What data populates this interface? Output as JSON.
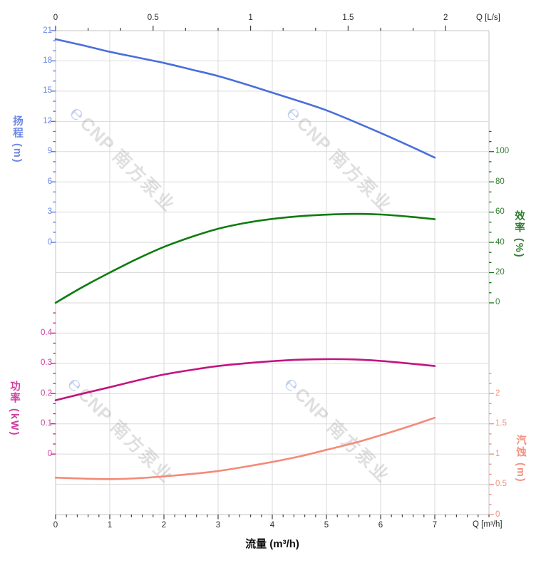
{
  "watermark": {
    "logo_icon": "℮",
    "brand": "CNP",
    "brand_cn": "南方泵业"
  },
  "top_axis": {
    "label": "Q [L/s]",
    "ticks": [
      {
        "v": 0,
        "t": "0"
      },
      {
        "v": 0.5,
        "t": "0.5"
      },
      {
        "v": 1,
        "t": "1"
      },
      {
        "v": 1.5,
        "t": "1.5"
      },
      {
        "v": 2,
        "t": "2"
      }
    ]
  },
  "bottom_axis": {
    "label": "Q [m³/h]",
    "title": "流量 (m³/h)",
    "ticks": [
      {
        "v": 0,
        "t": "0"
      },
      {
        "v": 1,
        "t": "1"
      },
      {
        "v": 2,
        "t": "2"
      },
      {
        "v": 3,
        "t": "3"
      },
      {
        "v": 4,
        "t": "4"
      },
      {
        "v": 5,
        "t": "5"
      },
      {
        "v": 6,
        "t": "6"
      },
      {
        "v": 7,
        "t": "7"
      }
    ]
  },
  "axes": {
    "head": {
      "title": "扬程 (m)",
      "unit": "m",
      "color": "#4a6edc",
      "label_color": "#6c86e6",
      "ticks": [
        {
          "v": 21,
          "t": "21"
        },
        {
          "v": 18,
          "t": "18"
        },
        {
          "v": 15,
          "t": "15"
        },
        {
          "v": 12,
          "t": "12"
        },
        {
          "v": 9,
          "t": "9"
        },
        {
          "v": 6,
          "t": "6"
        },
        {
          "v": 3,
          "t": "3"
        },
        {
          "v": 0,
          "t": "0"
        }
      ]
    },
    "eff": {
      "title": "效率 (%)",
      "unit": "%",
      "color": "#0e7c0e",
      "label_color": "#337d33",
      "ticks": [
        {
          "v": 100,
          "t": "100"
        },
        {
          "v": 80,
          "t": "80"
        },
        {
          "v": 60,
          "t": "60"
        },
        {
          "v": 40,
          "t": "40"
        },
        {
          "v": 20,
          "t": "20"
        },
        {
          "v": 0,
          "t": "0"
        }
      ]
    },
    "power": {
      "title": "功率 (kW)",
      "unit": "kW",
      "color": "#c2157f",
      "label_color": "#cf3da0",
      "ticks": [
        {
          "v": 0.4,
          "t": "0.4"
        },
        {
          "v": 0.3,
          "t": "0.3"
        },
        {
          "v": 0.2,
          "t": "0.2"
        },
        {
          "v": 0.1,
          "t": "0.1"
        },
        {
          "v": 0,
          "t": "0"
        }
      ]
    },
    "npsh": {
      "title": "汽蚀 (m)",
      "unit": "m",
      "color": "#f48a78",
      "label_color": "#f39180",
      "ticks": [
        {
          "v": 2,
          "t": "2"
        },
        {
          "v": 1.5,
          "t": "1.5"
        },
        {
          "v": 1,
          "t": "1"
        },
        {
          "v": 0.5,
          "t": "0.5"
        },
        {
          "v": 0,
          "t": "0"
        }
      ]
    }
  },
  "chart_data": {
    "type": "line",
    "title": "",
    "xlabel_bottom": "流量 (m³/h)",
    "xlabel_top": "Q [L/s]",
    "x_range_m3h": [
      0,
      8
    ],
    "x_ticks_bottom": [
      0,
      1,
      2,
      3,
      4,
      5,
      6,
      7
    ],
    "x_ticks_top_ls": [
      0,
      0.5,
      1,
      1.5,
      2
    ],
    "grid": true,
    "x": [
      0,
      0.5,
      1,
      1.5,
      2,
      2.5,
      3,
      3.5,
      4,
      4.5,
      5,
      5.5,
      6,
      6.5,
      7
    ],
    "series": [
      {
        "name": "扬程",
        "unit": "m",
        "axis": "head",
        "color": "#4a6edc",
        "axis_ticks": [
          21,
          18,
          15,
          12,
          9,
          6,
          3,
          0
        ],
        "values": [
          20.15,
          19.55,
          18.9,
          18.35,
          17.8,
          17.15,
          16.5,
          15.7,
          14.85,
          14.0,
          13.1,
          12.0,
          10.85,
          9.65,
          8.4
        ]
      },
      {
        "name": "效率",
        "unit": "%",
        "axis": "eff",
        "color": "#0e7c0e",
        "axis_ticks": [
          100,
          80,
          60,
          40,
          20,
          0
        ],
        "values": [
          0,
          10.5,
          20,
          29,
          37,
          43.5,
          49,
          52.8,
          55.5,
          57.3,
          58.3,
          58.8,
          58.4,
          57.1,
          55.3
        ]
      },
      {
        "name": "功率",
        "unit": "kW",
        "axis": "power",
        "color": "#c2157f",
        "axis_ticks": [
          0.4,
          0.3,
          0.2,
          0.1,
          0
        ],
        "values": [
          0.178,
          0.2,
          0.221,
          0.243,
          0.263,
          0.278,
          0.291,
          0.3,
          0.307,
          0.312,
          0.314,
          0.313,
          0.308,
          0.3,
          0.291
        ]
      },
      {
        "name": "汽蚀",
        "unit": "m",
        "axis": "npsh",
        "color": "#f48a78",
        "axis_ticks": [
          2,
          1.5,
          1,
          0.5,
          0
        ],
        "values": [
          0.61,
          0.595,
          0.585,
          0.6,
          0.63,
          0.67,
          0.72,
          0.79,
          0.87,
          0.96,
          1.07,
          1.18,
          1.31,
          1.45,
          1.6
        ]
      }
    ]
  }
}
